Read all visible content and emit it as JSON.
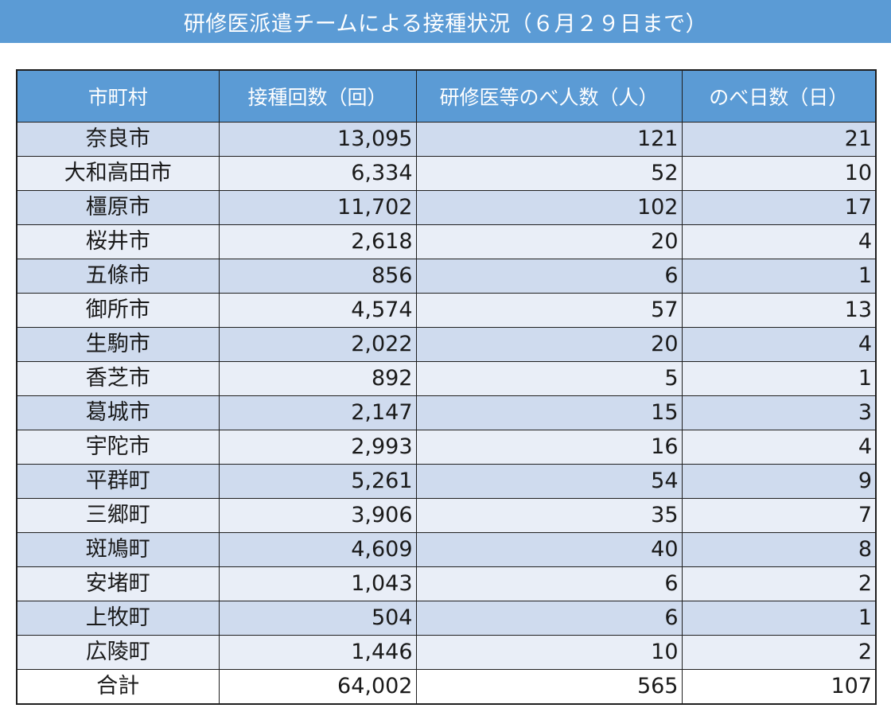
{
  "title": "研修医派遣チームによる接種状況（６月２９日まで）",
  "table": {
    "headers": [
      "市町村",
      "接種回数（回）",
      "研修医等のべ人数（人）",
      "のべ日数（日）"
    ],
    "rows": [
      [
        "奈良市",
        "13,095",
        "121",
        "21"
      ],
      [
        "大和高田市",
        "6,334",
        "52",
        "10"
      ],
      [
        "橿原市",
        "11,702",
        "102",
        "17"
      ],
      [
        "桜井市",
        "2,618",
        "20",
        "4"
      ],
      [
        "五條市",
        "856",
        "6",
        "1"
      ],
      [
        "御所市",
        "4,574",
        "57",
        "13"
      ],
      [
        "生駒市",
        "2,022",
        "20",
        "4"
      ],
      [
        "香芝市",
        "892",
        "5",
        "1"
      ],
      [
        "葛城市",
        "2,147",
        "15",
        "3"
      ],
      [
        "宇陀市",
        "2,993",
        "16",
        "4"
      ],
      [
        "平群町",
        "5,261",
        "54",
        "9"
      ],
      [
        "三郷町",
        "3,906",
        "35",
        "7"
      ],
      [
        "斑鳩町",
        "4,609",
        "40",
        "8"
      ],
      [
        "安堵町",
        "1,043",
        "6",
        "2"
      ],
      [
        "上牧町",
        "504",
        "6",
        "1"
      ],
      [
        "広陵町",
        "1,446",
        "10",
        "2"
      ]
    ],
    "total": [
      "合計",
      "64,002",
      "565",
      "107"
    ]
  },
  "colors": {
    "header_blue": "#5b9bd5",
    "row_band_dark": "#cfdbee",
    "row_band_light": "#e9eef7"
  }
}
